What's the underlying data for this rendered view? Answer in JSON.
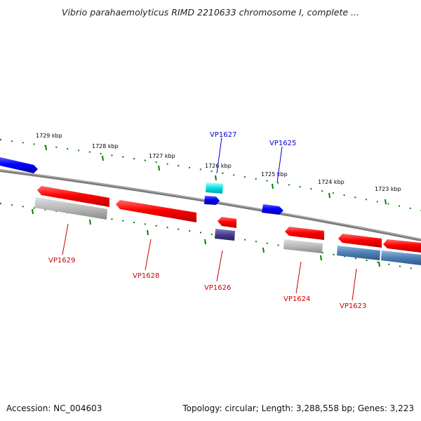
{
  "title": "Vibrio parahaemolyticus RIMD 2210633 chromosome I, complete ...",
  "footer": {
    "accession": "Accession: NC_004603",
    "summary": "Topology: circular; Length: 3,288,558 bp; Genes: 3,223"
  },
  "scale_labels": [
    "1729 kbp",
    "1728 kbp",
    "1727 kbp",
    "1726 kbp",
    "1725 kbp",
    "1724 kbp",
    "1723 kbp"
  ],
  "gene_labels": [
    {
      "name": "VP1627",
      "color": "#0000cc"
    },
    {
      "name": "VP1625",
      "color": "#0000cc"
    },
    {
      "name": "VP1629",
      "color": "#cc0000"
    },
    {
      "name": "VP1628",
      "color": "#cc0000"
    },
    {
      "name": "VP1626",
      "color": "#cc0000"
    },
    {
      "name": "VP1624",
      "color": "#cc0000"
    },
    {
      "name": "VP1623",
      "color": "#cc0000"
    }
  ],
  "colors": {
    "backbone": "#808080",
    "forward_gene": "#0000ff",
    "reverse_gene": "#ff0000",
    "tick": "#008000"
  }
}
